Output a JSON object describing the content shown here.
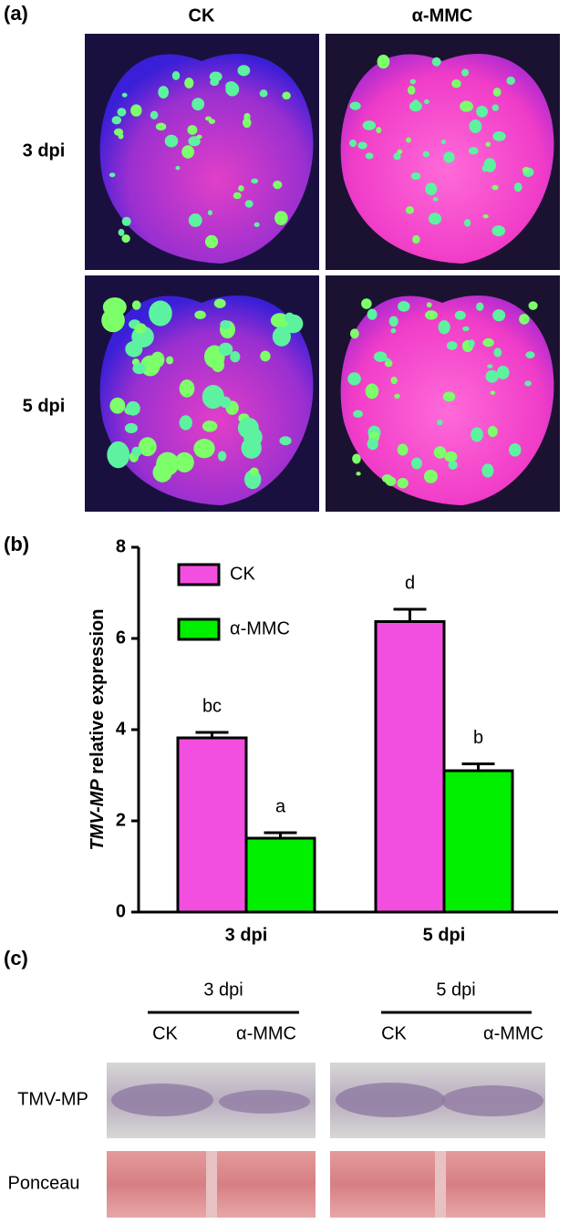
{
  "panel_a": {
    "label": "(a)",
    "columns": [
      "CK",
      "α-MMC"
    ],
    "rows": [
      "3 dpi",
      "5 dpi"
    ]
  },
  "chart_data": {
    "type": "bar",
    "panel_label": "(b)",
    "y_label": {
      "italic": "TMV-MP",
      "text": "relative expression"
    },
    "categories": [
      "3 dpi",
      "5 dpi"
    ],
    "series": [
      {
        "name": "CK",
        "color": "#f24fe0",
        "values": [
          3.82,
          6.37
        ],
        "errors": [
          0.12,
          0.27
        ],
        "letters": [
          "bc",
          "d"
        ]
      },
      {
        "name": "α-MMC",
        "color": "#00f000",
        "values": [
          1.62,
          3.1
        ],
        "errors": [
          0.12,
          0.15
        ],
        "letters": [
          "a",
          "b"
        ]
      }
    ],
    "ylim": [
      0,
      8
    ],
    "yticks": [
      0,
      2,
      4,
      6,
      8
    ]
  },
  "panel_c": {
    "label": "(c)",
    "groups": [
      {
        "title": "3 dpi",
        "lanes": [
          "CK",
          "α-MMC"
        ]
      },
      {
        "title": "5 dpi",
        "lanes": [
          "CK",
          "α-MMC"
        ]
      }
    ],
    "rows": [
      "TMV-MP",
      "Ponceau"
    ]
  }
}
